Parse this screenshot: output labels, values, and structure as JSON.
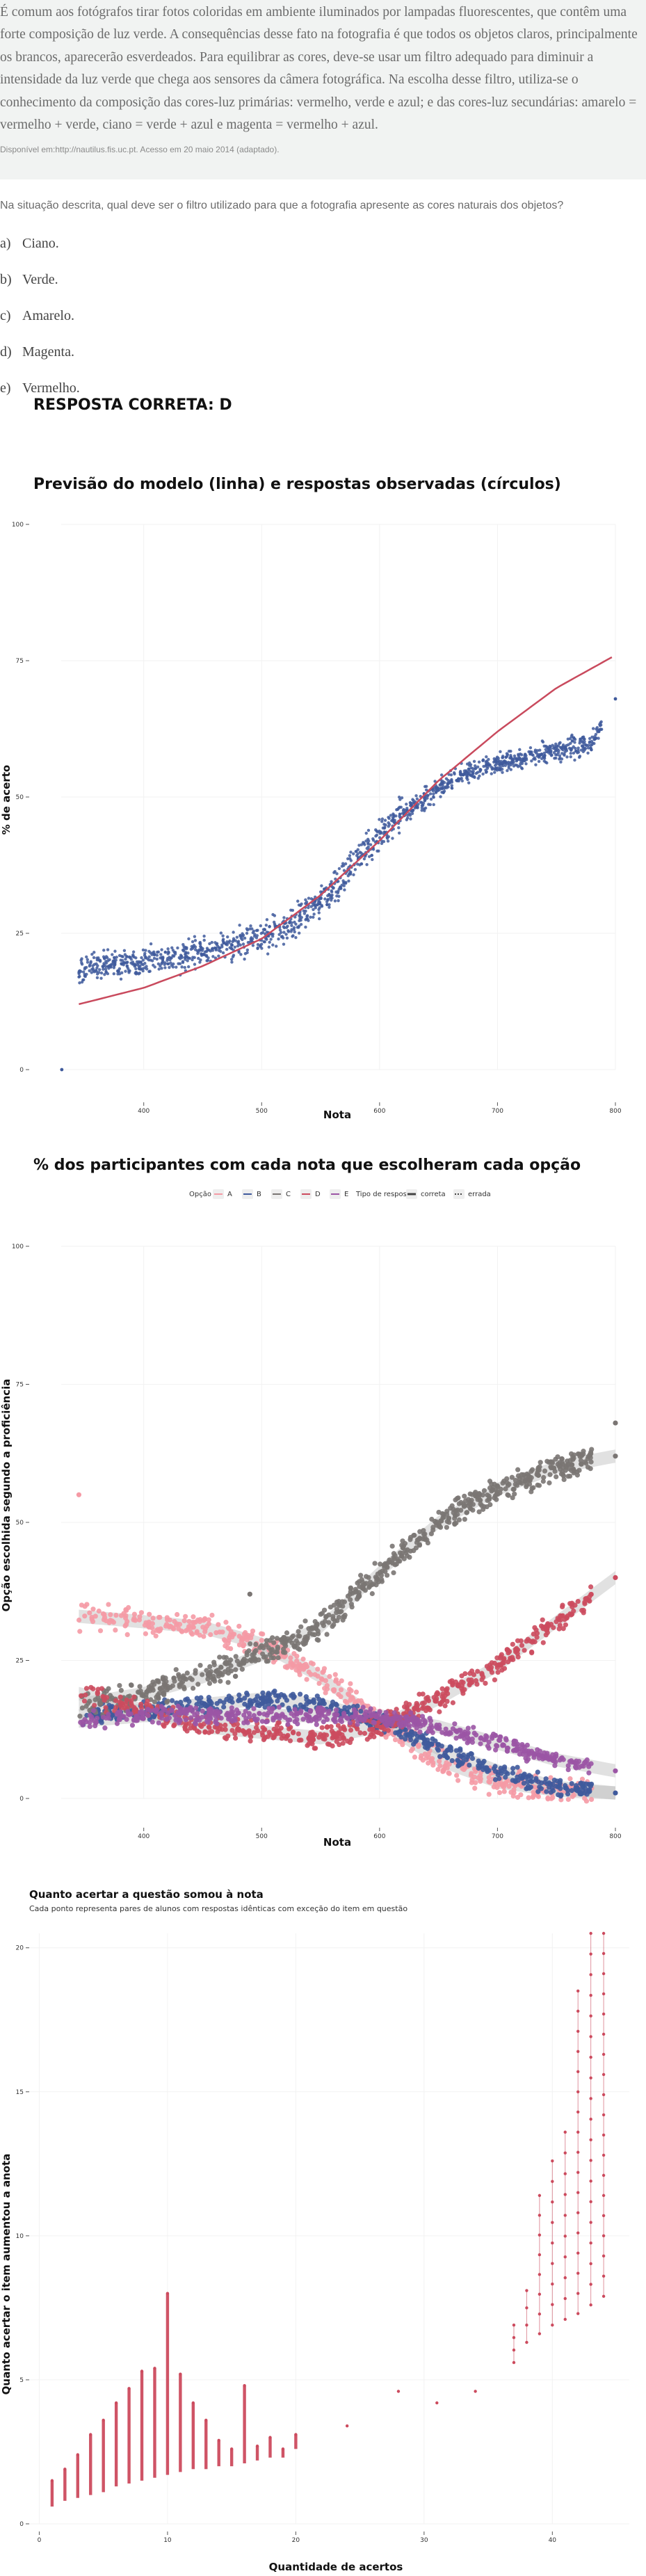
{
  "question": {
    "text": "É comum aos fotógrafos tirar fotos coloridas em ambiente iluminados por lampadas fluorescentes, que contêm uma forte composição de luz verde. A consequências desse fato na fotografia é que todos os objetos claros, principalmente os brancos, aparecerão esverdeados. Para equilibrar as cores, deve-se usar um filtro adequado para diminuir a intensidade da luz verde que chega aos sensores da câmera fotográfica. Na escolha desse filtro, utiliza-se o conhecimento da composição das cores-luz primárias: vermelho, verde e azul; e das cores-luz secundárias: amarelo = vermelho + verde, ciano = verde + azul e magenta = vermelho + azul.",
    "source": "Disponível em:http://nautilus.fis.uc.pt. Acesso em 20 maio 2014 (adaptado).",
    "prompt": "Na situação descrita, qual deve ser o filtro utilizado para que a fotografia apresente as cores naturais dos objetos?",
    "options": [
      {
        "letter": "a)",
        "text": "Ciano."
      },
      {
        "letter": "b)",
        "text": "Verde."
      },
      {
        "letter": "c)",
        "text": "Amarelo."
      },
      {
        "letter": "d)",
        "text": "Magenta."
      },
      {
        "letter": "e)",
        "text": "Vermelho."
      }
    ],
    "answer": "RESPOSTA CORRETA: D"
  },
  "colors": {
    "curve": "#c94a5d",
    "points": "#3f5a9c",
    "A": "#f59aa5",
    "B": "#3f5a9c",
    "C": "#7a7573",
    "D": "#cc4b5e",
    "E": "#9b55a5",
    "band": "#bdbdbd"
  },
  "chart_data": [
    {
      "type": "scatter",
      "title": "Previsão do modelo (linha) e respostas observadas (círculos)",
      "xlabel": "Nota",
      "ylabel": "% de acerto",
      "xticks": [
        "400",
        "500",
        "600",
        "700",
        "800"
      ],
      "yticks": [
        "0",
        "25",
        "50",
        "75",
        "100"
      ],
      "xlim": [
        330,
        800
      ],
      "ylim": [
        0,
        100
      ],
      "model_curve": {
        "x": [
          345,
          400,
          450,
          500,
          550,
          600,
          650,
          700,
          750,
          800
        ],
        "y": [
          12,
          15,
          19,
          24,
          32,
          42,
          53,
          62,
          70,
          76
        ]
      },
      "observed": {
        "x": [
          345,
          360,
          380,
          400,
          420,
          440,
          460,
          480,
          500,
          520,
          540,
          560,
          580,
          600,
          620,
          640,
          660,
          680,
          700,
          720,
          740,
          760,
          780,
          800
        ],
        "y": [
          18,
          19,
          19.5,
          20,
          20.5,
          21,
          22,
          23,
          24,
          26,
          29,
          33,
          38,
          43,
          47,
          50,
          53,
          55,
          56,
          57,
          58,
          59,
          60,
          68
        ]
      }
    },
    {
      "type": "scatter",
      "title": "% dos participantes com cada nota que escolheram cada opção",
      "xlabel": "Nota",
      "ylabel": "Opção escolhida segundo a proficiência",
      "xticks": [
        "400",
        "500",
        "600",
        "700",
        "800"
      ],
      "yticks": [
        "0",
        "25",
        "50",
        "75",
        "100"
      ],
      "xlim": [
        330,
        800
      ],
      "ylim": [
        0,
        100
      ],
      "legend": {
        "option_title": "Opção",
        "options": [
          "A",
          "B",
          "C",
          "D",
          "E"
        ],
        "type_title": "Tipo de resposta",
        "types": [
          "correta",
          "errada"
        ]
      },
      "series": [
        {
          "name": "A",
          "x": [
            345,
            400,
            450,
            500,
            550,
            600,
            650,
            700,
            750,
            800
          ],
          "y": [
            33,
            32,
            31,
            28,
            22,
            14,
            7,
            3,
            1.5,
            1
          ]
        },
        {
          "name": "B",
          "x": [
            345,
            400,
            450,
            500,
            550,
            600,
            650,
            700,
            750,
            800
          ],
          "y": [
            15,
            16,
            17,
            18,
            17,
            14,
            9,
            5,
            2,
            1
          ]
        },
        {
          "name": "C",
          "x": [
            345,
            400,
            450,
            500,
            550,
            600,
            650,
            700,
            750,
            800
          ],
          "y": [
            17,
            19,
            22,
            26,
            31,
            41,
            50,
            56,
            60,
            62
          ]
        },
        {
          "name": "D",
          "x": [
            345,
            400,
            450,
            500,
            550,
            600,
            650,
            700,
            750,
            800
          ],
          "y": [
            19,
            16,
            13,
            12,
            11,
            13,
            18,
            24,
            32,
            40
          ]
        },
        {
          "name": "E",
          "x": [
            345,
            400,
            450,
            500,
            550,
            600,
            650,
            700,
            750,
            800
          ],
          "y": [
            14,
            15,
            15,
            15,
            15,
            15,
            13,
            10,
            7,
            5
          ]
        }
      ]
    },
    {
      "type": "scatter",
      "title": "Quanto acertar a questão somou à nota",
      "subtitle": "Cada ponto representa pares de alunos com respostas idênticas com exceção do item em questão",
      "xlabel": "Quantidade de acertos",
      "ylabel": "Quanto acertar o item aumentou a anota",
      "xticks": [
        "0",
        "10",
        "20",
        "30",
        "40"
      ],
      "yticks": [
        "0",
        "5",
        "10",
        "15",
        "20"
      ],
      "xlim": [
        -1,
        46
      ],
      "ylim": [
        0,
        20.5
      ],
      "columns": [
        {
          "x": 1,
          "min": 0.6,
          "max": 1.5
        },
        {
          "x": 2,
          "min": 0.8,
          "max": 1.9
        },
        {
          "x": 3,
          "min": 0.9,
          "max": 2.4
        },
        {
          "x": 4,
          "min": 1.0,
          "max": 3.1
        },
        {
          "x": 5,
          "min": 1.1,
          "max": 3.6
        },
        {
          "x": 6,
          "min": 1.3,
          "max": 4.2
        },
        {
          "x": 7,
          "min": 1.4,
          "max": 4.7
        },
        {
          "x": 8,
          "min": 1.5,
          "max": 5.3
        },
        {
          "x": 9,
          "min": 1.6,
          "max": 5.4
        },
        {
          "x": 10,
          "min": 1.7,
          "max": 8.0
        },
        {
          "x": 11,
          "min": 1.8,
          "max": 5.2
        },
        {
          "x": 12,
          "min": 1.9,
          "max": 4.2
        },
        {
          "x": 13,
          "min": 1.9,
          "max": 3.6
        },
        {
          "x": 14,
          "min": 2.0,
          "max": 2.9
        },
        {
          "x": 15,
          "min": 2.0,
          "max": 2.6
        },
        {
          "x": 16,
          "min": 2.1,
          "max": 4.8
        },
        {
          "x": 17,
          "min": 2.2,
          "max": 2.7
        },
        {
          "x": 18,
          "min": 2.3,
          "max": 3.0
        },
        {
          "x": 19,
          "min": 2.3,
          "max": 2.6
        },
        {
          "x": 20,
          "min": 2.6,
          "max": 3.1
        },
        {
          "x": 24,
          "min": 3.4,
          "max": 3.4
        },
        {
          "x": 28,
          "min": 4.6,
          "max": 4.6
        },
        {
          "x": 31,
          "min": 4.2,
          "max": 4.2
        },
        {
          "x": 34,
          "min": 4.6,
          "max": 4.6
        },
        {
          "x": 37,
          "min": 5.6,
          "max": 6.9
        },
        {
          "x": 38,
          "min": 6.3,
          "max": 8.1
        },
        {
          "x": 39,
          "min": 6.6,
          "max": 11.4
        },
        {
          "x": 40,
          "min": 6.9,
          "max": 12.6
        },
        {
          "x": 41,
          "min": 7.1,
          "max": 13.6
        },
        {
          "x": 42,
          "min": 7.3,
          "max": 18.5
        },
        {
          "x": 43,
          "min": 7.6,
          "max": 20.5
        },
        {
          "x": 44,
          "min": 7.9,
          "max": 20.5
        }
      ]
    }
  ]
}
